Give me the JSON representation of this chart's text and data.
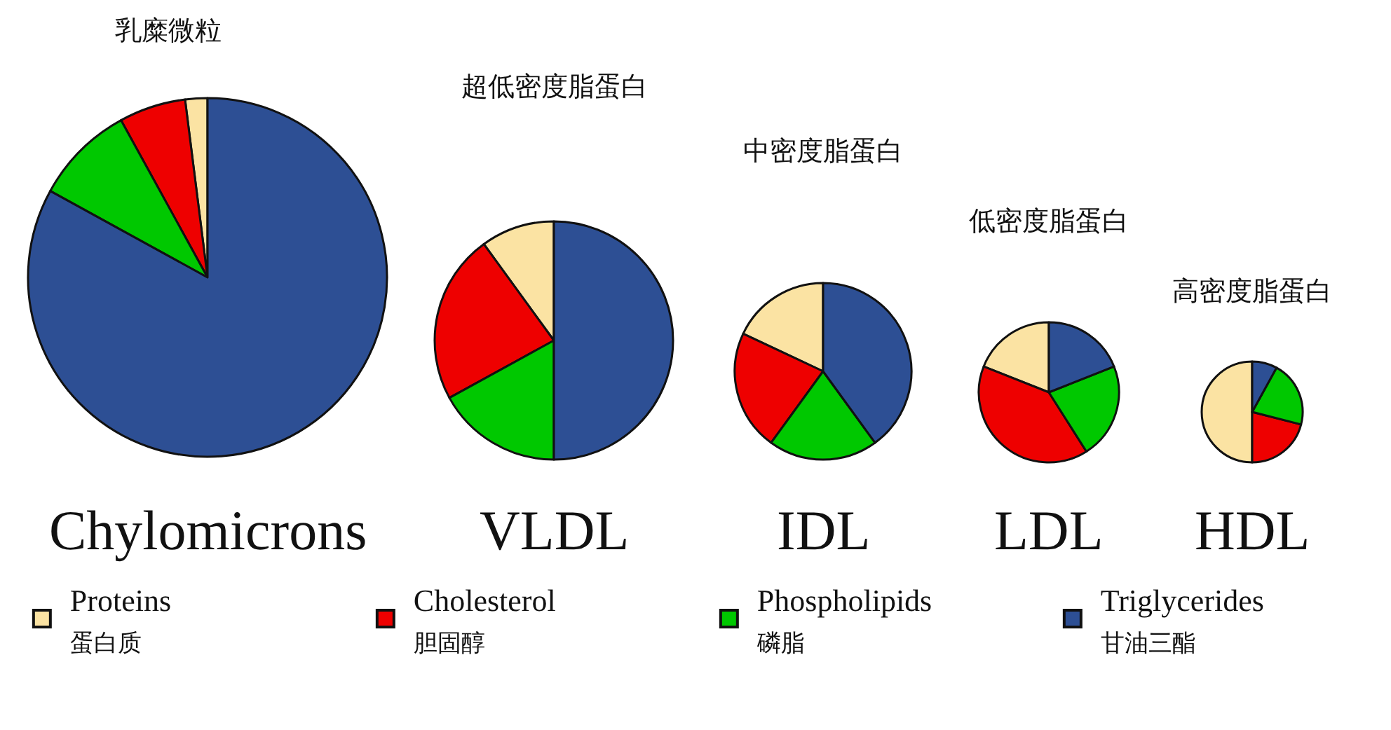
{
  "chart_data": [
    {
      "type": "pie",
      "title": "乳糜微粒",
      "xlabel": "Chylomicrons",
      "legend": "bottom",
      "categories": [
        "Proteins\n蛋白质",
        "Cholesterol\n胆固醇",
        "Phospholipids\n磷脂",
        "Triglycerides\n甘油三酯"
      ],
      "values": [
        2,
        6,
        9,
        83
      ],
      "colors": [
        "#fbe3a3",
        "#ee0000",
        "#00c800",
        "#2d4f94"
      ]
    },
    {
      "type": "pie",
      "title": "超低密度脂蛋白",
      "xlabel": "VLDL",
      "categories": [
        null,
        null,
        null,
        null
      ],
      "values": [
        10,
        23,
        17,
        50
      ],
      "colors": [
        "#fbe3a3",
        "#ee0000",
        "#00c800",
        "#2d4f94"
      ]
    },
    {
      "type": "pie",
      "title": "中密度脂蛋白",
      "xlabel": "IDL",
      "categories": [
        null,
        null,
        null,
        null
      ],
      "values": [
        18,
        22,
        20,
        40
      ],
      "colors": [
        "#fbe3a3",
        "#ee0000",
        "#00c800",
        "#2d4f94"
      ]
    },
    {
      "type": "pie",
      "title": "低密度脂蛋白",
      "xlabel": "LDL",
      "categories": [
        null,
        null,
        null,
        null
      ],
      "values": [
        19,
        40,
        22,
        19
      ],
      "colors": [
        "#fbe3a3",
        "#ee0000",
        "#00c800",
        "#2d4f94"
      ]
    },
    {
      "type": "pie",
      "title": "高密度脂蛋白",
      "xlabel": "HDL",
      "categories": [
        null,
        null,
        null,
        null
      ],
      "values": [
        50,
        21,
        21,
        8
      ],
      "colors": [
        "#fbe3a3",
        "#ee0000",
        "#00c800",
        "#2d4f94"
      ]
    }
  ]
}
